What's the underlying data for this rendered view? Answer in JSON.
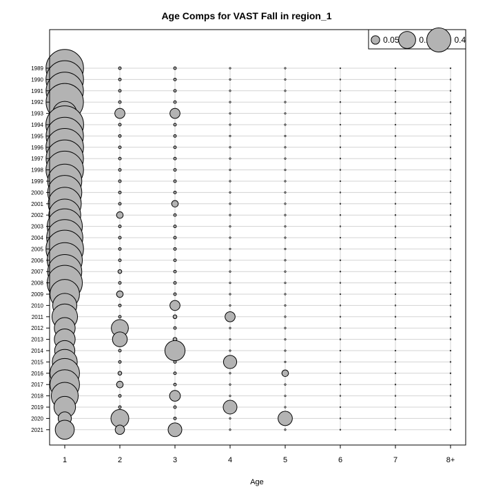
{
  "chart_data": {
    "type": "bubble",
    "title": "Age Comps for VAST Fall in region_1",
    "xlabel": "Age",
    "ylabel": "",
    "x_categories": [
      "1",
      "2",
      "3",
      "4",
      "5",
      "6",
      "7",
      "8+"
    ],
    "years": [
      "1989",
      "1990",
      "1991",
      "1992",
      "1993",
      "1994",
      "1995",
      "1996",
      "1997",
      "1998",
      "1999",
      "2000",
      "2001",
      "2002",
      "2003",
      "2004",
      "2005",
      "2006",
      "2007",
      "2008",
      "2009",
      "2010",
      "2011",
      "2012",
      "2013",
      "2014",
      "2015",
      "2016",
      "2017",
      "2018",
      "2019",
      "2020",
      "2021"
    ],
    "values": [
      [
        0.97,
        0.005,
        0.005,
        0.002,
        0.002,
        0.001,
        0.001,
        0.001
      ],
      [
        0.97,
        0.005,
        0.005,
        0.002,
        0.002,
        0.001,
        0.001,
        0.001
      ],
      [
        0.96,
        0.005,
        0.005,
        0.002,
        0.002,
        0.001,
        0.001,
        0.001
      ],
      [
        0.96,
        0.005,
        0.005,
        0.002,
        0.002,
        0.001,
        0.001,
        0.001
      ],
      [
        0.4,
        0.07,
        0.07,
        0.002,
        0.002,
        0.001,
        0.001,
        0.001
      ],
      [
        0.98,
        0.005,
        0.005,
        0.002,
        0.002,
        0.001,
        0.001,
        0.001
      ],
      [
        0.96,
        0.005,
        0.005,
        0.002,
        0.002,
        0.001,
        0.001,
        0.001
      ],
      [
        0.97,
        0.005,
        0.005,
        0.002,
        0.002,
        0.001,
        0.001,
        0.001
      ],
      [
        0.96,
        0.005,
        0.005,
        0.002,
        0.002,
        0.001,
        0.001,
        0.001
      ],
      [
        0.97,
        0.005,
        0.005,
        0.002,
        0.002,
        0.001,
        0.001,
        0.001
      ],
      [
        0.8,
        0.005,
        0.005,
        0.002,
        0.002,
        0.001,
        0.001,
        0.001
      ],
      [
        0.8,
        0.005,
        0.005,
        0.002,
        0.002,
        0.001,
        0.001,
        0.001
      ],
      [
        0.75,
        0.005,
        0.03,
        0.002,
        0.002,
        0.001,
        0.001,
        0.001
      ],
      [
        0.7,
        0.03,
        0.005,
        0.002,
        0.002,
        0.001,
        0.001,
        0.001
      ],
      [
        0.85,
        0.005,
        0.005,
        0.002,
        0.002,
        0.001,
        0.001,
        0.001
      ],
      [
        0.9,
        0.005,
        0.005,
        0.002,
        0.002,
        0.001,
        0.001,
        0.001
      ],
      [
        0.97,
        0.005,
        0.005,
        0.002,
        0.002,
        0.001,
        0.001,
        0.001
      ],
      [
        0.85,
        0.005,
        0.005,
        0.002,
        0.002,
        0.001,
        0.001,
        0.001
      ],
      [
        0.8,
        0.01,
        0.005,
        0.002,
        0.002,
        0.001,
        0.001,
        0.001
      ],
      [
        0.85,
        0.005,
        0.005,
        0.002,
        0.002,
        0.001,
        0.001,
        0.001
      ],
      [
        0.6,
        0.03,
        0.005,
        0.002,
        0.002,
        0.001,
        0.001,
        0.001
      ],
      [
        0.4,
        0.005,
        0.07,
        0.002,
        0.002,
        0.001,
        0.001,
        0.001
      ],
      [
        0.45,
        0.005,
        0.01,
        0.07,
        0.002,
        0.001,
        0.001,
        0.001
      ],
      [
        0.3,
        0.2,
        0.005,
        0.002,
        0.002,
        0.001,
        0.001,
        0.001
      ],
      [
        0.3,
        0.15,
        0.01,
        0.002,
        0.002,
        0.001,
        0.001,
        0.001
      ],
      [
        0.28,
        0.005,
        0.28,
        0.002,
        0.002,
        0.001,
        0.001,
        0.001
      ],
      [
        0.43,
        0.005,
        0.005,
        0.12,
        0.002,
        0.001,
        0.001,
        0.001
      ],
      [
        0.6,
        0.01,
        0.005,
        0.002,
        0.03,
        0.001,
        0.001,
        0.001
      ],
      [
        0.6,
        0.03,
        0.005,
        0.002,
        0.002,
        0.001,
        0.001,
        0.001
      ],
      [
        0.5,
        0.005,
        0.08,
        0.002,
        0.002,
        0.001,
        0.001,
        0.001
      ],
      [
        0.32,
        0.005,
        0.005,
        0.13,
        0.002,
        0.001,
        0.001,
        0.001
      ],
      [
        0.12,
        0.22,
        0.005,
        0.002,
        0.14,
        0.001,
        0.001,
        0.001
      ],
      [
        0.25,
        0.06,
        0.13,
        0.002,
        0.002,
        0.001,
        0.001,
        0.001
      ]
    ],
    "legend": {
      "position": "top-right",
      "entries": [
        {
          "value": 0.05,
          "label": "0.05"
        },
        {
          "value": 0.2,
          "label": "0.2"
        },
        {
          "value": 0.4,
          "label": "0.4"
        }
      ]
    },
    "grid": true,
    "colors": {
      "bubble_fill": "#b3b3b3",
      "bubble_stroke": "#000000",
      "grid": "#d3d3d3"
    }
  }
}
